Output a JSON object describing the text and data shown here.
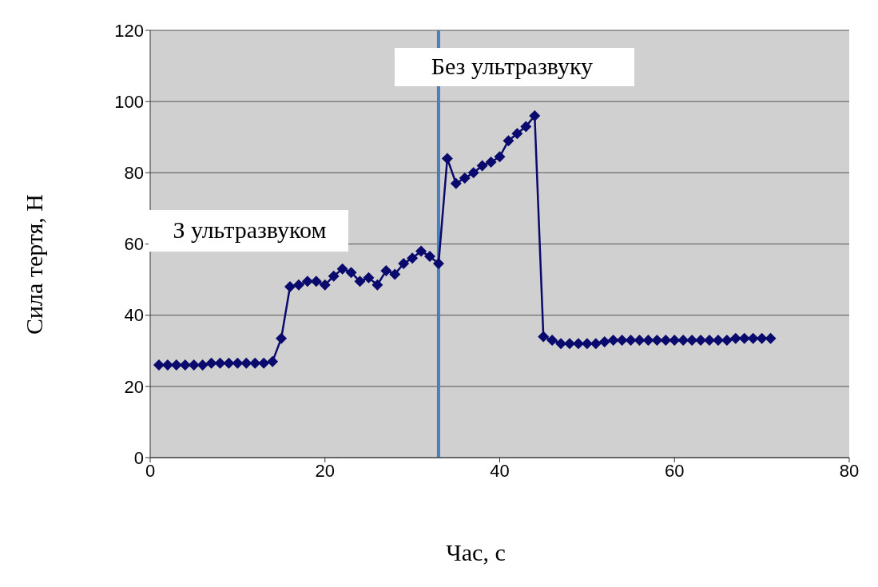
{
  "chart_data": {
    "type": "line",
    "xlabel": "Час, с",
    "ylabel": "Сила тертя, Н",
    "x": [
      1,
      2,
      3,
      4,
      5,
      6,
      7,
      8,
      9,
      10,
      11,
      12,
      13,
      14,
      15,
      16,
      17,
      18,
      19,
      20,
      21,
      22,
      23,
      24,
      25,
      26,
      27,
      28,
      29,
      30,
      31,
      32,
      33,
      34,
      35,
      36,
      37,
      38,
      39,
      40,
      41,
      42,
      43,
      44,
      45,
      46,
      47,
      48,
      49,
      50,
      51,
      52,
      53,
      54,
      55,
      56,
      57,
      58,
      59,
      60,
      61,
      62,
      63,
      64,
      65,
      66,
      67,
      68,
      69,
      70,
      71
    ],
    "series": [
      {
        "color": "#0a0a6e",
        "values": [
          26,
          26,
          26,
          26,
          26,
          26,
          26.5,
          26.5,
          26.5,
          26.5,
          26.5,
          26.5,
          26.5,
          27,
          33.5,
          48,
          48.5,
          49.5,
          49.5,
          48.5,
          51,
          53,
          52,
          49.5,
          50.5,
          48.5,
          52.5,
          51.5,
          54.5,
          56,
          58,
          56.5,
          54.5,
          84,
          77,
          78.5,
          80,
          82,
          83,
          84.5,
          89,
          91,
          93,
          96,
          34,
          33,
          32,
          32,
          32,
          32,
          32,
          32.5,
          33,
          33,
          33,
          33,
          33,
          33,
          33,
          33,
          33,
          33,
          33,
          33,
          33,
          33,
          33.5,
          33.5,
          33.5,
          33.5,
          33.5
        ]
      }
    ],
    "xlim": [
      0,
      80
    ],
    "xticks": [
      0,
      20,
      40,
      60,
      80
    ],
    "ylim": [
      0,
      120
    ],
    "yticks": [
      0,
      20,
      40,
      60,
      80,
      100,
      120
    ],
    "grid": "y",
    "marker": "diamond",
    "line_style": "solid",
    "ref_lines": [
      {
        "axis": "x",
        "value": 33,
        "color": "#4a7ebb",
        "line_style": "solid"
      }
    ],
    "annotations": [
      "Без ультразвуку",
      "З ультразвуком"
    ]
  }
}
